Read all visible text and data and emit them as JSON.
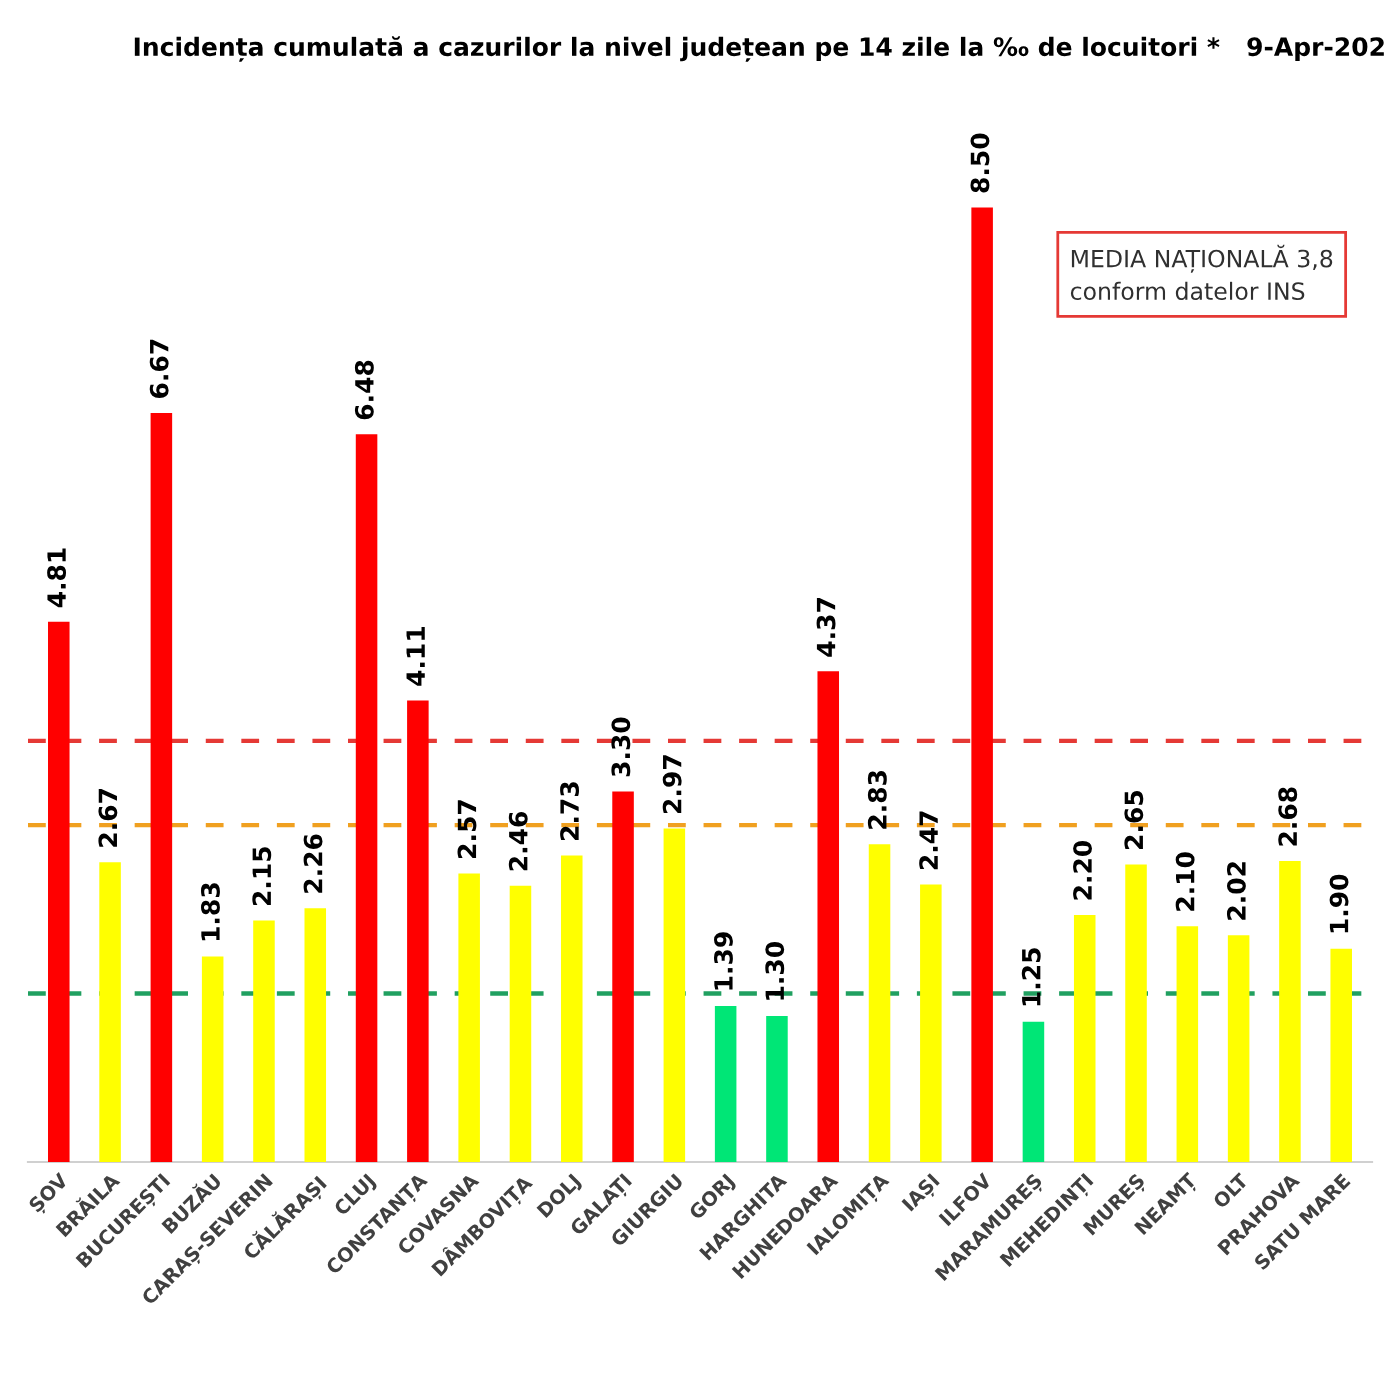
{
  "chart_data": {
    "type": "bar",
    "title": "Incidența cumulată a cazurilor la nivel județean pe 14 zile la ‰ de locuitori *   9-Apr-202",
    "categories": [
      "ȘOV",
      "BRĂILA",
      "BUCUREȘTI",
      "BUZĂU",
      "CARAȘ-SEVERIN",
      "CĂLĂRAȘI",
      "CLUJ",
      "CONSTANȚA",
      "COVASNA",
      "DÂMBOVIȚA",
      "DOLJ",
      "GALAȚI",
      "GIURGIU",
      "GORJ",
      "HARGHITA",
      "HUNEDOARA",
      "IALOMIȚA",
      "IAȘI",
      "ILFOV",
      "MARAMUREȘ",
      "MEHEDINȚI",
      "MUREȘ",
      "NEAMȚ",
      "OLT",
      "PRAHOVA",
      "SATU MARE"
    ],
    "values": [
      4.81,
      2.67,
      6.67,
      1.83,
      2.15,
      2.26,
      6.48,
      4.11,
      2.57,
      2.46,
      2.73,
      3.3,
      2.97,
      1.39,
      1.3,
      4.37,
      2.83,
      2.47,
      8.5,
      1.25,
      2.2,
      2.65,
      2.1,
      2.02,
      2.68,
      1.9
    ],
    "value_labels": [
      "4.81",
      "2.67",
      "6.67",
      "1.83",
      "2.15",
      "2.26",
      "6.48",
      "4.11",
      "2.57",
      "2.46",
      "2.73",
      "3.30",
      "2.97",
      "1.39",
      "1.30",
      "4.37",
      "2.83",
      "2.47",
      "8.50",
      "1.25",
      "2.20",
      "2.65",
      "2.10",
      "2.02",
      "2.68",
      "1.90"
    ],
    "colors": [
      "#ff0000",
      "#ffff00",
      "#ff0000",
      "#ffff00",
      "#ffff00",
      "#ffff00",
      "#ff0000",
      "#ff0000",
      "#ffff00",
      "#ffff00",
      "#ffff00",
      "#ff0000",
      "#ffff00",
      "#00e676",
      "#00e676",
      "#ff0000",
      "#ffff00",
      "#ffff00",
      "#ff0000",
      "#00e676",
      "#ffff00",
      "#ffff00",
      "#ffff00",
      "#ffff00",
      "#ffff00",
      "#ffff00"
    ],
    "tick_labels": "x",
    "ref_lines": [
      {
        "axis": "y",
        "value": 3.75,
        "color": "#e53935",
        "line_style": "dashed"
      },
      {
        "axis": "y",
        "value": 3.0,
        "color": "#f0a020",
        "line_style": "dashed"
      },
      {
        "axis": "y",
        "value": 1.5,
        "color": "#20a060",
        "line_style": "dashed"
      }
    ],
    "annotations": [
      "MEDIA NAȚIONALĂ 3,8",
      "conform datelor INS"
    ]
  }
}
